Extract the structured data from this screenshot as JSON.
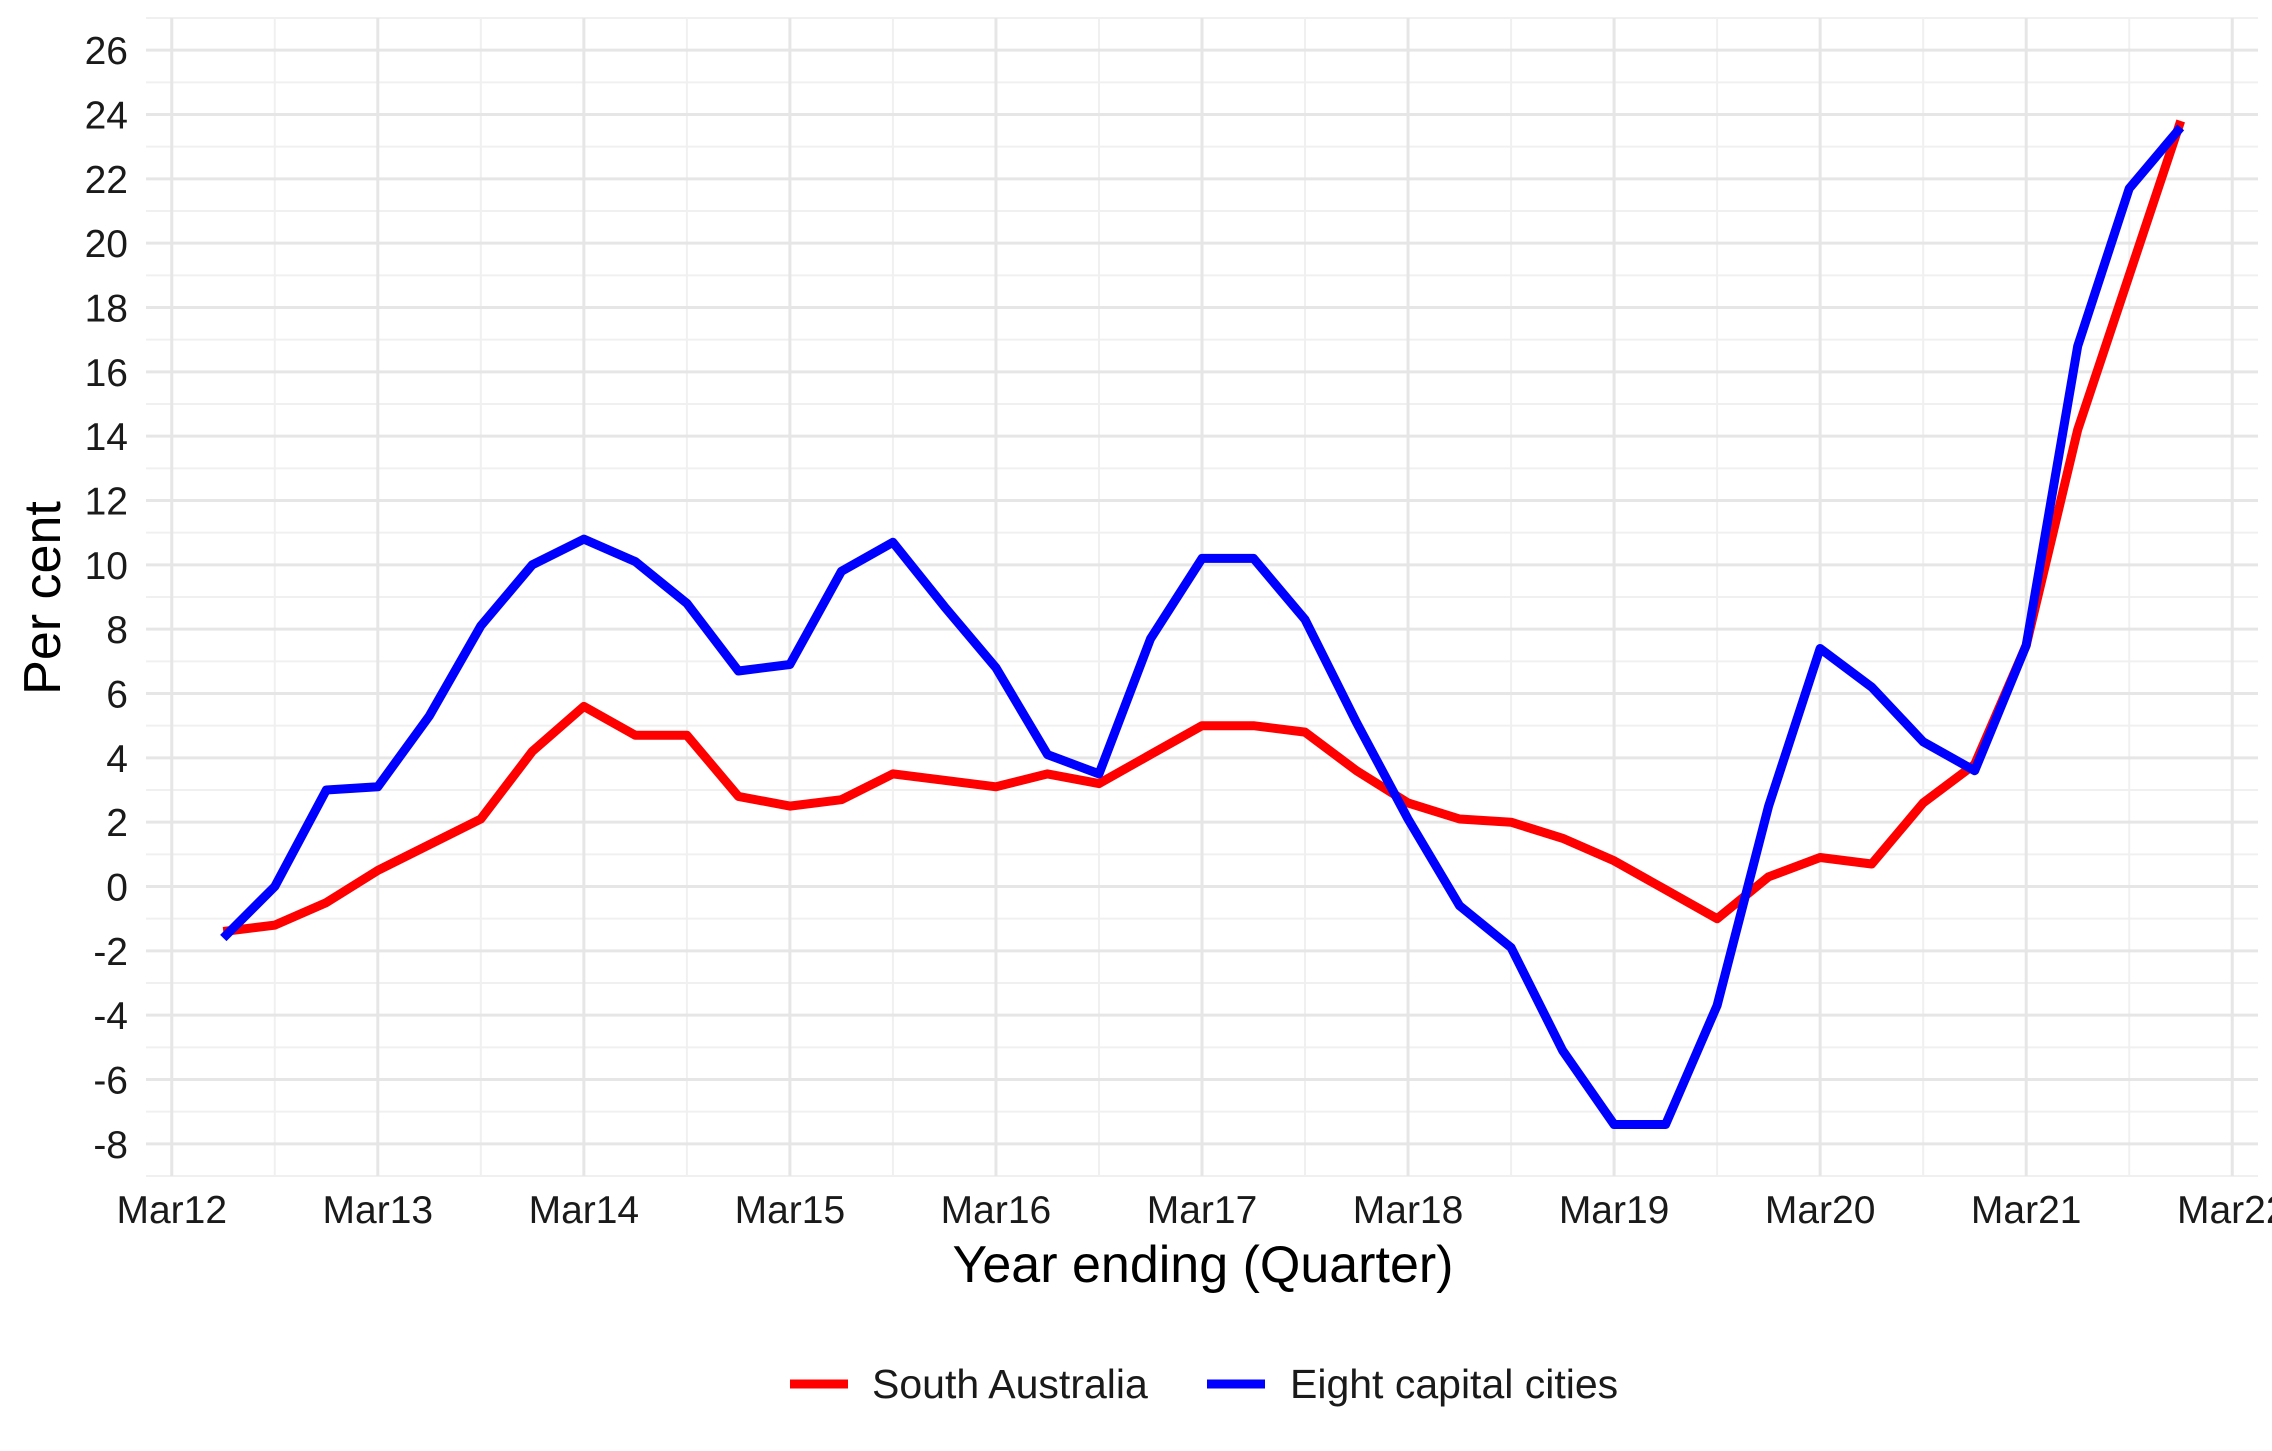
{
  "chart_data": {
    "type": "line",
    "xlabel": "Year ending (Quarter)",
    "ylabel": "Per cent",
    "ylim": [
      -9,
      27
    ],
    "yticks": [
      -8,
      -6,
      -4,
      -2,
      0,
      2,
      4,
      6,
      8,
      10,
      12,
      14,
      16,
      18,
      20,
      22,
      24,
      26
    ],
    "xlim": [
      -0.5,
      40.5
    ],
    "xticks": [
      {
        "x": 0,
        "label": "Mar12"
      },
      {
        "x": 4,
        "label": "Mar13"
      },
      {
        "x": 8,
        "label": "Mar14"
      },
      {
        "x": 12,
        "label": "Mar15"
      },
      {
        "x": 16,
        "label": "Mar16"
      },
      {
        "x": 20,
        "label": "Mar17"
      },
      {
        "x": 24,
        "label": "Mar18"
      },
      {
        "x": 28,
        "label": "Mar19"
      },
      {
        "x": 32,
        "label": "Mar20"
      },
      {
        "x": 36,
        "label": "Mar21"
      },
      {
        "x": 40,
        "label": "Mar22"
      }
    ],
    "x": [
      1,
      2,
      3,
      4,
      5,
      6,
      7,
      8,
      9,
      10,
      11,
      12,
      13,
      14,
      15,
      16,
      17,
      18,
      19,
      20,
      21,
      22,
      23,
      24,
      25,
      26,
      27,
      28,
      29,
      30,
      31,
      32,
      33,
      34,
      35,
      36,
      37,
      38,
      39
    ],
    "grid": true,
    "legend_position": "bottom",
    "series": [
      {
        "name": "South Australia",
        "color": "#ff0000",
        "values": [
          -1.4,
          -1.2,
          -0.5,
          0.5,
          1.3,
          2.1,
          4.2,
          5.6,
          4.7,
          4.7,
          2.8,
          2.5,
          2.7,
          3.5,
          3.3,
          3.1,
          3.5,
          3.2,
          4.1,
          5.0,
          5.0,
          4.8,
          3.6,
          2.6,
          2.1,
          2.0,
          1.5,
          0.8,
          -0.1,
          -1.0,
          0.3,
          0.9,
          0.7,
          2.6,
          3.8,
          7.5,
          14.2,
          19.0,
          23.8
        ]
      },
      {
        "name": "Eight capital cities",
        "color": "#0000ff",
        "values": [
          -1.6,
          0.0,
          3.0,
          3.1,
          5.3,
          8.1,
          10.0,
          10.8,
          10.1,
          8.8,
          6.7,
          6.9,
          9.8,
          10.7,
          8.7,
          6.8,
          4.1,
          3.5,
          7.7,
          10.2,
          10.2,
          8.3,
          5.1,
          2.1,
          -0.6,
          -1.9,
          -5.1,
          -7.4,
          -7.4,
          -3.7,
          2.5,
          7.4,
          6.2,
          4.5,
          3.6,
          7.5,
          16.8,
          21.7,
          23.6
        ]
      }
    ]
  }
}
